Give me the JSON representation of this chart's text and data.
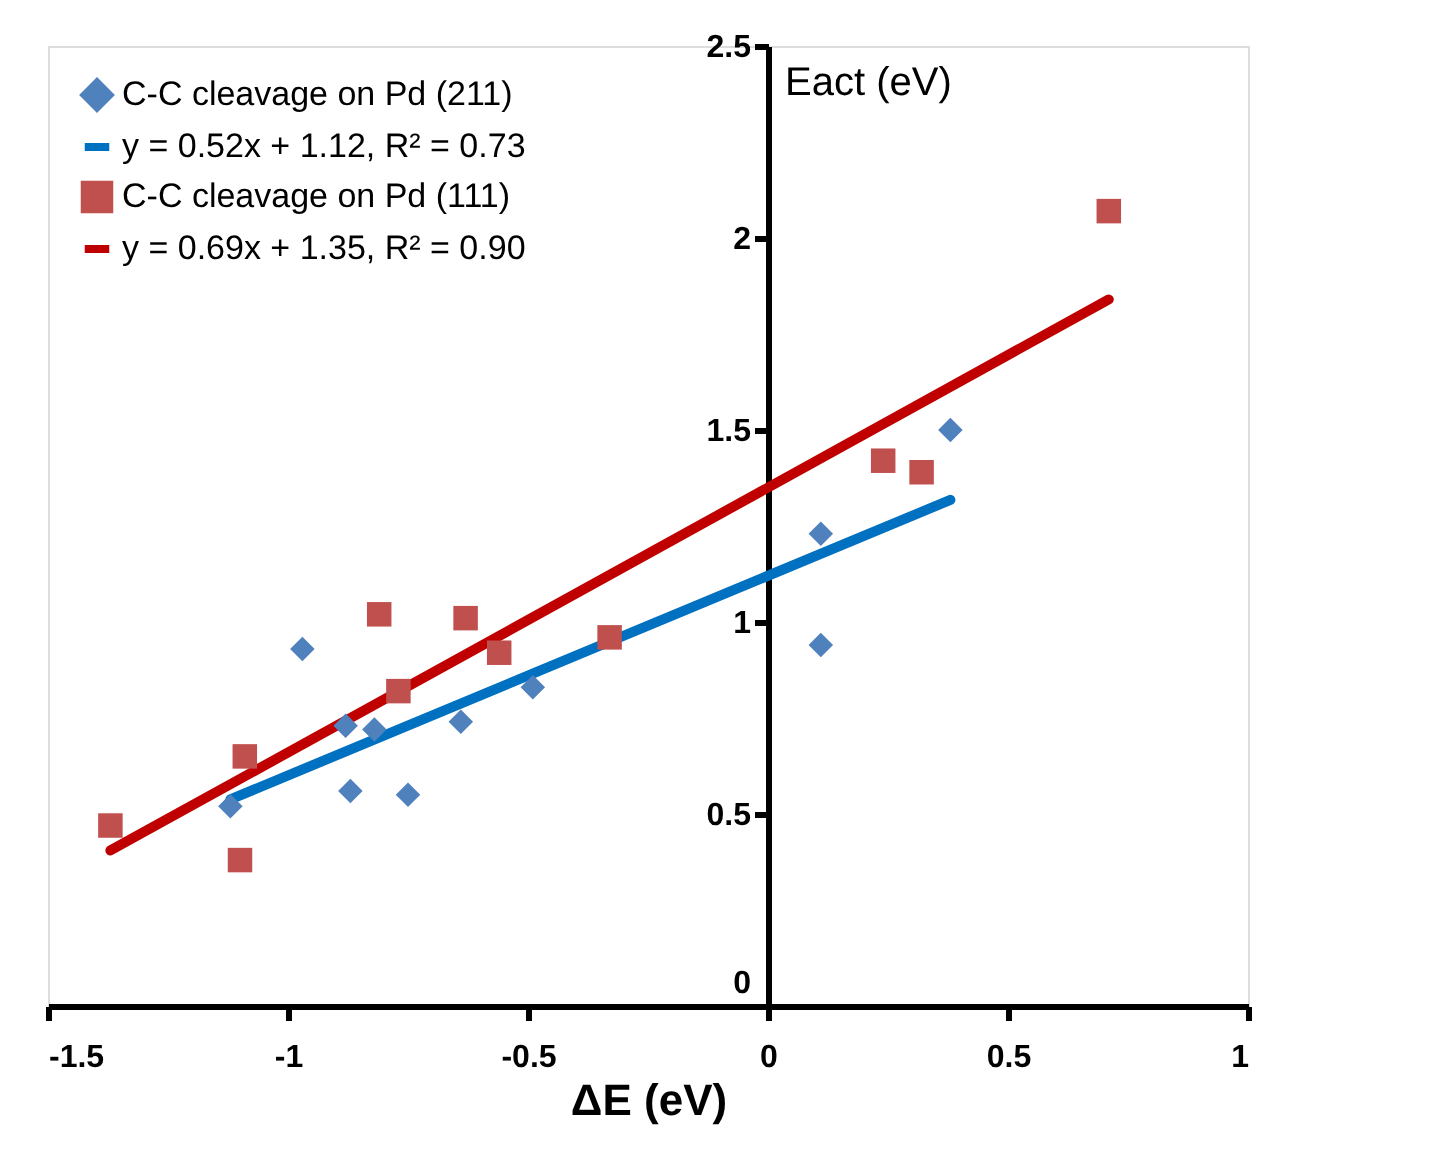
{
  "chart_data": {
    "type": "scatter",
    "xlabel": "ΔE (eV)",
    "ylabel": "Eact (eV)",
    "xlim": [
      -1.5,
      1
    ],
    "xticks": [
      -1.5,
      -1,
      -0.5,
      0,
      0.5,
      1
    ],
    "ylim": [
      0,
      2.5
    ],
    "yticks": [
      0,
      0.5,
      1,
      1.5,
      2,
      2.5
    ],
    "grid": false,
    "legend": "top left",
    "series": [
      {
        "name": "C-C cleavage on Pd (211)",
        "marker": "diamond",
        "color": "#4f81bd",
        "x": [
          -1.12,
          -0.97,
          -0.88,
          -0.82,
          -0.87,
          -0.75,
          -0.64,
          -0.49,
          0.11,
          0.11,
          0.38
        ],
        "values": [
          0.52,
          0.93,
          0.73,
          0.72,
          0.56,
          0.55,
          0.74,
          0.83,
          1.23,
          0.94,
          1.5
        ]
      },
      {
        "name": "y = 0.52x + 1.12, R² = 0.73",
        "type": "line",
        "marker": "none",
        "color": "#0070c0",
        "x": [
          -1.12,
          0.38
        ],
        "values": [
          0.538,
          1.318
        ]
      },
      {
        "name": "C-C cleavage on Pd (111)",
        "marker": "square",
        "color": "#c0504d",
        "x": [
          -1.37,
          -1.09,
          -1.1,
          -0.81,
          -0.77,
          -0.63,
          -0.56,
          -0.33,
          0.24,
          0.32,
          0.71
        ],
        "values": [
          0.47,
          0.65,
          0.38,
          1.02,
          0.82,
          1.01,
          0.92,
          0.96,
          1.42,
          1.39,
          2.07
        ]
      },
      {
        "name": "y = 0.69x + 1.35, R² = 0.90",
        "type": "line",
        "marker": "none",
        "color": "#c00000",
        "x": [
          -1.37,
          0.71
        ],
        "values": [
          0.405,
          1.84
        ]
      }
    ]
  }
}
